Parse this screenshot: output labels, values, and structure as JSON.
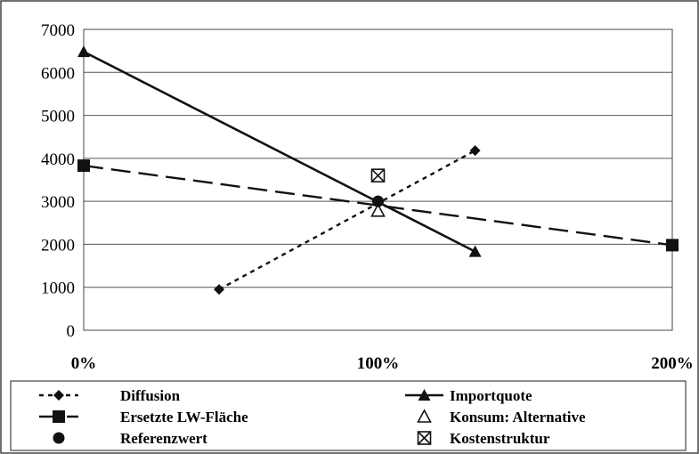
{
  "chart_data": {
    "type": "line",
    "title": "",
    "xlabel": "",
    "ylabel": "",
    "xlim": [
      0,
      200
    ],
    "ylim": [
      0,
      7000
    ],
    "y_ticks": [
      "0",
      "1000",
      "2000",
      "3000",
      "4000",
      "5000",
      "6000",
      "7000"
    ],
    "x_ticks": [
      "0%",
      "100%",
      "200%"
    ],
    "x_tick_values": [
      0,
      100,
      200
    ],
    "y_tick_values": [
      0,
      1000,
      2000,
      3000,
      4000,
      5000,
      6000,
      7000
    ],
    "grid": "horizontal",
    "legend_position": "bottom",
    "series": [
      {
        "name": "Diffusion",
        "style": "dotted",
        "marker": "diamond",
        "points": [
          [
            46,
            950
          ],
          [
            133,
            4180
          ]
        ]
      },
      {
        "name": "Importquote",
        "style": "solid",
        "marker": "triangle",
        "points": [
          [
            0,
            6480
          ],
          [
            133,
            1830
          ]
        ]
      },
      {
        "name": "Ersetzte LW-Fläche",
        "style": "dashed",
        "marker": "square",
        "points": [
          [
            0,
            3830
          ],
          [
            200,
            1980
          ]
        ]
      },
      {
        "name": "Konsum: Alternative",
        "style": "none",
        "marker": "open-triangle",
        "points": [
          [
            100,
            2780
          ]
        ]
      },
      {
        "name": "Referenzwert",
        "style": "none",
        "marker": "circle",
        "points": [
          [
            100,
            3000
          ]
        ]
      },
      {
        "name": "Kostenstruktur",
        "style": "none",
        "marker": "boxed-x",
        "points": [
          [
            100,
            3600
          ]
        ]
      }
    ]
  }
}
